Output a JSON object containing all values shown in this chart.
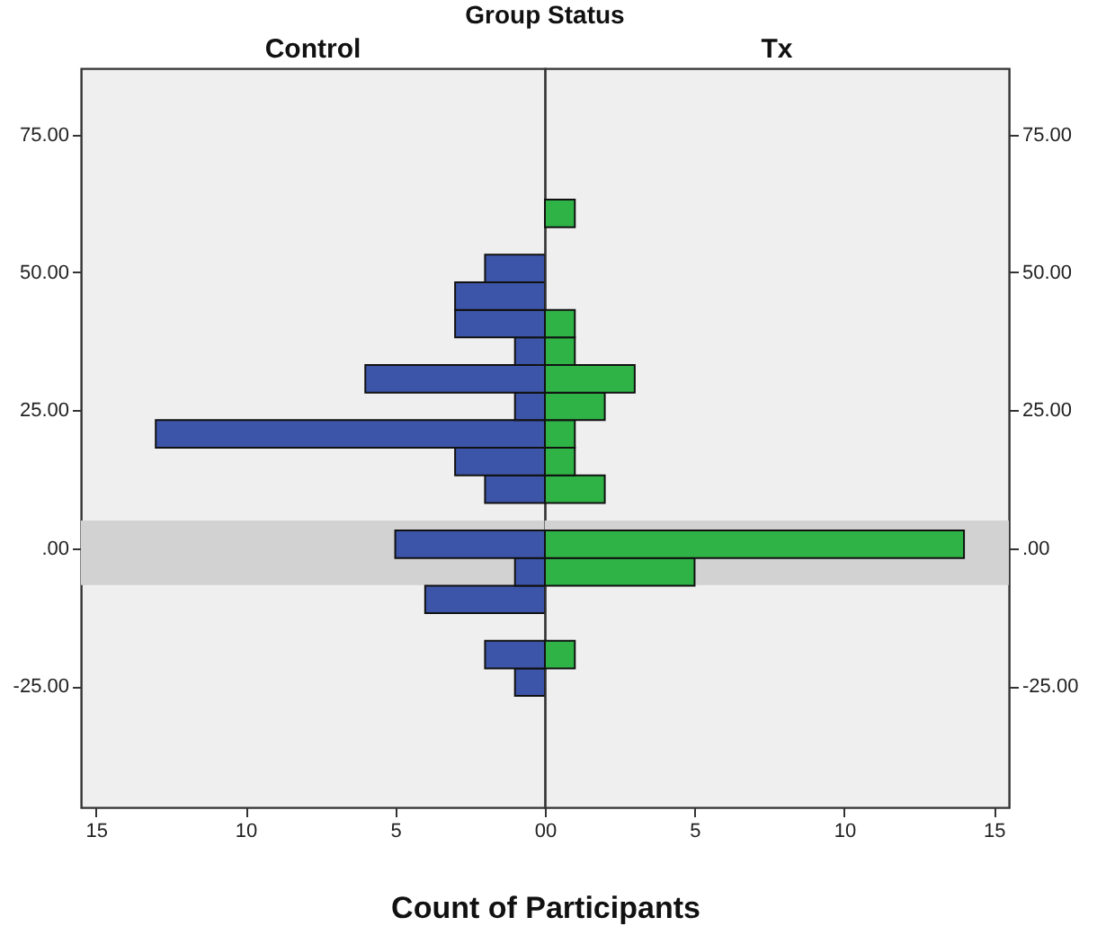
{
  "chart_data": [
    {
      "type": "histogram",
      "orientation": "horizontal",
      "title": "Control",
      "annotations": [
        "Group Status"
      ],
      "bins": [
        -26.8,
        -21.8,
        -16.8,
        -11.8,
        -6.8,
        -1.8,
        3.2,
        8.2,
        13.2,
        18.2,
        23.2,
        28.2,
        33.2,
        38.2,
        43.2,
        48.2,
        53.2,
        58.2,
        63.2
      ],
      "values": [
        1,
        2,
        0,
        4,
        1,
        5,
        0,
        2,
        3,
        13,
        1,
        6,
        1,
        3,
        3,
        2,
        0,
        0
      ],
      "color": "#3d55a8",
      "xlim": [
        15.5,
        0
      ],
      "xticks": [
        15,
        10,
        5,
        0
      ],
      "ylim": [
        -47,
        87
      ],
      "yticks": [
        {
          "value": -25,
          "label": "-25.00"
        },
        {
          "value": 0,
          "label": ".00"
        },
        {
          "value": 25,
          "label": "25.00"
        },
        {
          "value": 50,
          "label": "50.00"
        },
        {
          "value": 75,
          "label": "75.00"
        }
      ],
      "bands": [
        {
          "axis": "y",
          "from": -6.7,
          "to": 5.0,
          "color": "#d2d2d2"
        }
      ],
      "grid": false
    },
    {
      "type": "histogram",
      "orientation": "horizontal",
      "title": "Tx",
      "xlabel": "Count of Participants",
      "bins": [
        -26.8,
        -21.8,
        -16.8,
        -11.8,
        -6.8,
        -1.8,
        3.2,
        8.2,
        13.2,
        18.2,
        23.2,
        28.2,
        33.2,
        38.2,
        43.2,
        48.2,
        53.2,
        58.2,
        63.2
      ],
      "values": [
        0,
        1,
        0,
        0,
        5,
        14,
        0,
        2,
        1,
        1,
        2,
        3,
        1,
        1,
        0,
        0,
        0,
        1
      ],
      "color": "#2fb347",
      "xlim": [
        0,
        15.5
      ],
      "xticks": [
        0,
        5,
        10,
        15
      ],
      "ylim": [
        -47,
        87
      ],
      "y2lim": [
        -47,
        87
      ],
      "y2ticks": [
        {
          "value": -25,
          "label": "-25.00"
        },
        {
          "value": 0,
          "label": ".00"
        },
        {
          "value": 25,
          "label": "25.00"
        },
        {
          "value": 50,
          "label": "50.00"
        },
        {
          "value": 75,
          "label": "75.00"
        }
      ],
      "bands": [
        {
          "axis": "y",
          "from": -6.7,
          "to": 5.0,
          "color": "#d2d2d2"
        }
      ],
      "grid": false
    }
  ]
}
